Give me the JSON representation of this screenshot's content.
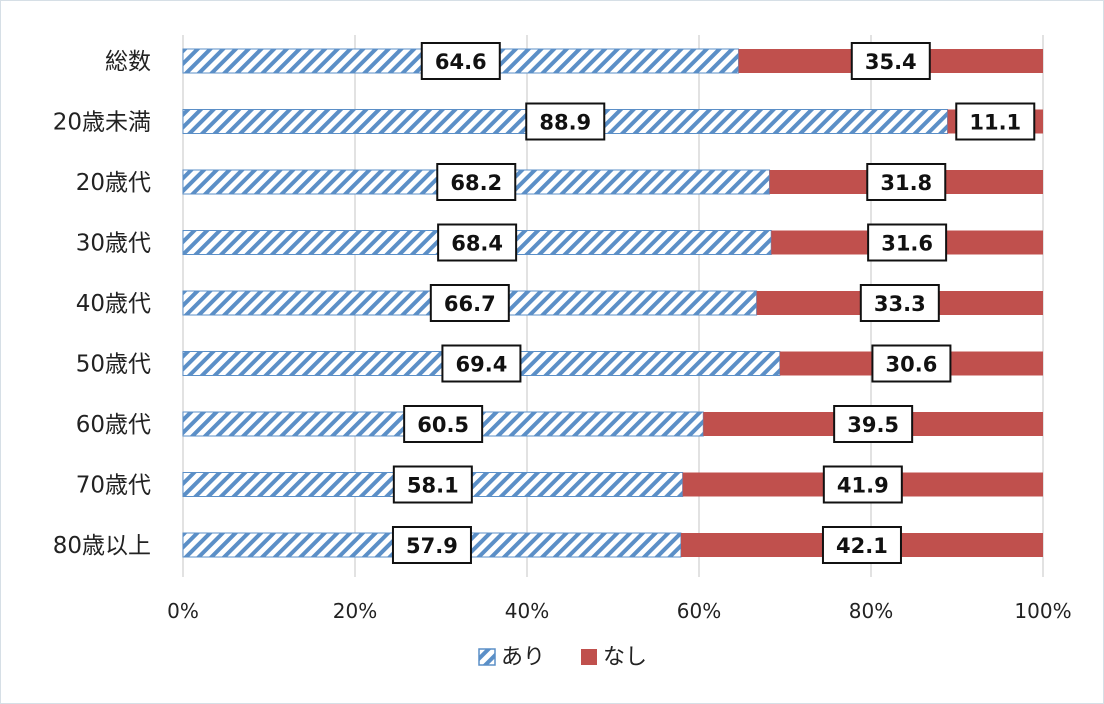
{
  "chart_data": {
    "type": "bar",
    "orientation": "horizontal",
    "stacked": true,
    "percent_stacked": true,
    "categories": [
      "総数",
      "20歳未満",
      "20歳代",
      "30歳代",
      "40歳代",
      "50歳代",
      "60歳代",
      "70歳代",
      "80歳以上"
    ],
    "series": [
      {
        "name": "あり",
        "values": [
          64.6,
          88.9,
          68.2,
          68.4,
          66.7,
          69.4,
          60.5,
          58.1,
          57.9
        ],
        "pattern": "diagonal-hatch",
        "color": "#5b8fc7"
      },
      {
        "name": "なし",
        "values": [
          35.4,
          11.1,
          31.8,
          31.6,
          33.3,
          30.6,
          39.5,
          41.9,
          42.1
        ],
        "color": "#c0504d"
      }
    ],
    "x_ticks": [
      "0%",
      "20%",
      "40%",
      "60%",
      "80%",
      "100%"
    ],
    "xlim": [
      0,
      100
    ],
    "grid": "vertical",
    "legend_position": "bottom",
    "title": "",
    "xlabel": "",
    "ylabel": ""
  }
}
